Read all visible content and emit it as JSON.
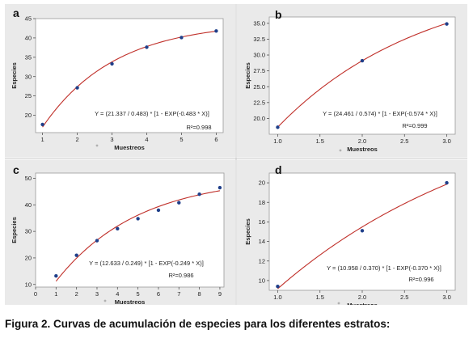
{
  "caption": "Figura 2. Curvas de acumulación de especies para los diferentes estratos:",
  "colors": {
    "curve": "#c0302a",
    "points": "#1f3f8a",
    "panel_bg": "#eaeaea"
  },
  "chart_data": [
    {
      "type": "scatter",
      "panel": "a",
      "xlabel": "Muestreos",
      "ylabel": "Especies",
      "equation": "Y = (21.337 / 0.483) * [1 - EXP(-0.483 * X)]",
      "r2": "R²=0.998",
      "model": {
        "a": 21.337,
        "b": 0.483
      },
      "x": [
        1,
        2,
        3,
        4,
        5,
        6
      ],
      "y": [
        17.6,
        27.1,
        33.3,
        37.6,
        40.1,
        41.8
      ],
      "xlim": [
        0.8,
        6.2
      ],
      "ylim": [
        15.5,
        45
      ],
      "xticks": [
        1,
        2,
        3,
        4,
        5,
        6
      ],
      "yticks": [
        20,
        25,
        30,
        35,
        40,
        45
      ]
    },
    {
      "type": "scatter",
      "panel": "b",
      "xlabel": "Muestreos",
      "ylabel": "Especies",
      "equation": "Y = (24.461 / 0.574) * [1 - EXP(-0.574 * X)]",
      "r2": "R²=0.999",
      "model": {
        "a": 24.461,
        "b": 0.574
      },
      "x": [
        1,
        2,
        3
      ],
      "y": [
        18.6,
        29.1,
        34.9
      ],
      "xlim": [
        0.9,
        3.1
      ],
      "ylim": [
        17.5,
        36
      ],
      "xticks": [
        "1.0",
        "1.5",
        "2.0",
        "2.5",
        "3.0"
      ],
      "yticks": [
        "20.0",
        "22.5",
        "25.0",
        "27.5",
        "30.0",
        "32.5",
        "35.0"
      ]
    },
    {
      "type": "scatter",
      "panel": "c",
      "xlabel": "Muestreos",
      "ylabel": "Especies",
      "equation": "Y = (12.633 / 0.249) * [1 - EXP(-0.249 * X)]",
      "r2": "R²=0.986",
      "model": {
        "a": 12.633,
        "b": 0.249
      },
      "x": [
        1,
        2,
        3,
        4,
        5,
        6,
        7,
        8,
        9
      ],
      "y": [
        13.2,
        21.0,
        26.5,
        31.0,
        34.8,
        38.0,
        40.8,
        44.0,
        46.5
      ],
      "xlim": [
        0,
        9.2
      ],
      "ylim": [
        9,
        52
      ],
      "xticks": [
        0,
        1,
        2,
        3,
        4,
        5,
        6,
        7,
        8,
        9
      ],
      "yticks": [
        10,
        20,
        30,
        40,
        50
      ]
    },
    {
      "type": "scatter",
      "panel": "d",
      "xlabel": "Muestreos",
      "ylabel": "Especies",
      "equation": "Y = (10.958 / 0.370) * [1 - EXP(-0.370 * X)]",
      "r2": "R²=0.996",
      "model": {
        "a": 10.958,
        "b": 0.37
      },
      "x": [
        1,
        2,
        3
      ],
      "y": [
        9.4,
        15.1,
        20.0
      ],
      "xlim": [
        0.9,
        3.1
      ],
      "ylim": [
        9,
        21
      ],
      "xticks": [
        "1.0",
        "1.5",
        "2.0",
        "2.5",
        "3.0"
      ],
      "yticks": [
        10,
        12,
        14,
        16,
        18,
        20
      ]
    }
  ]
}
